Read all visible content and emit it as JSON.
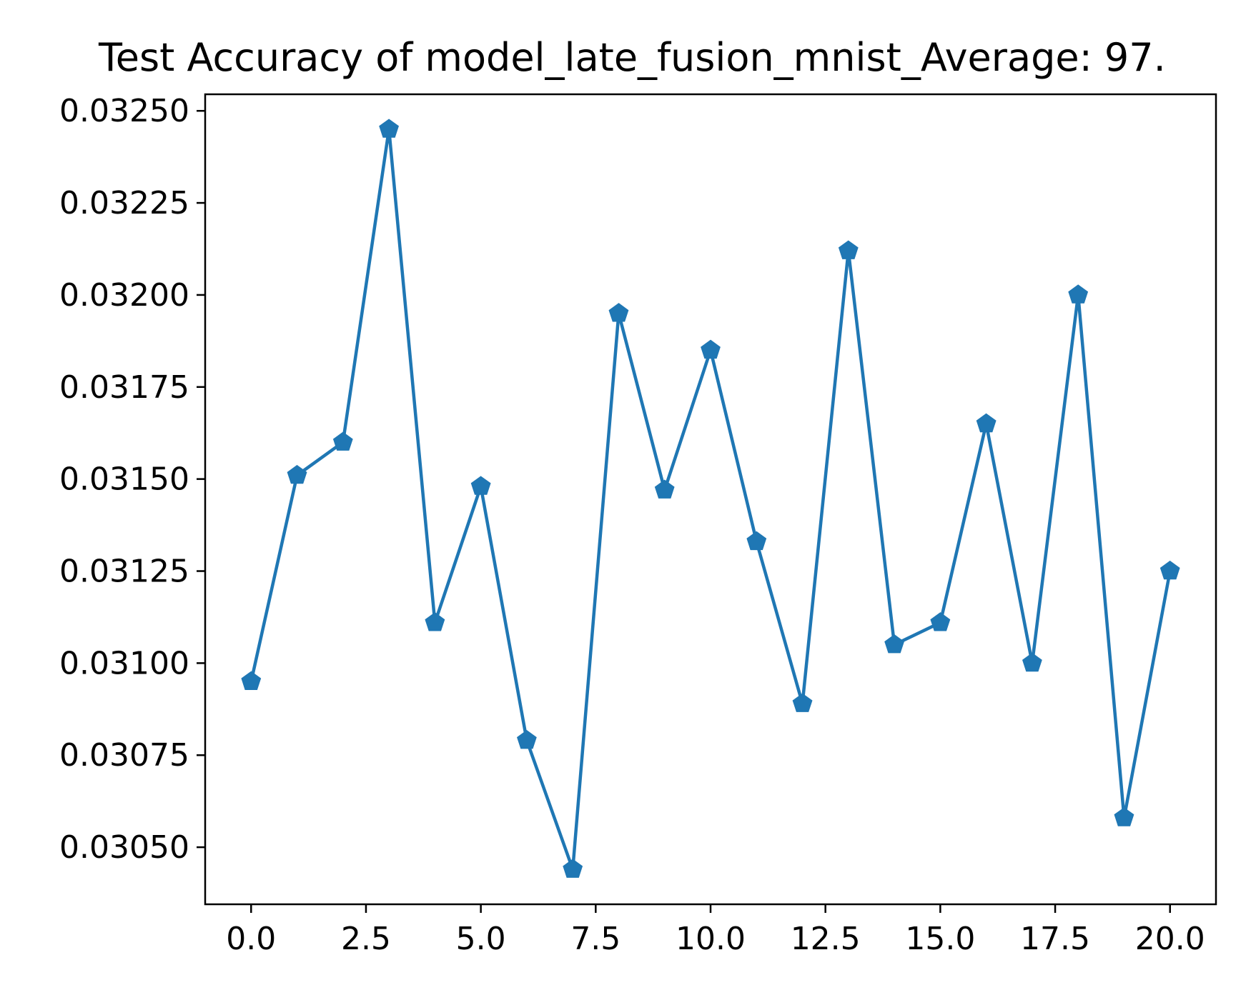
{
  "chart_data": {
    "type": "line",
    "title": "Test Accuracy of model_late_fusion_mnist_Average: 97.",
    "xlabel": "",
    "ylabel": "",
    "xlim": [
      -1.0,
      21.0
    ],
    "ylim": [
      0.030345,
      0.032545
    ],
    "x_ticks": [
      0.0,
      2.5,
      5.0,
      7.5,
      10.0,
      12.5,
      15.0,
      17.5,
      20.0
    ],
    "x_tick_labels": [
      "0.0",
      "2.5",
      "5.0",
      "7.5",
      "10.0",
      "12.5",
      "15.0",
      "17.5",
      "20.0"
    ],
    "y_ticks": [
      0.0305,
      0.03075,
      0.031,
      0.03125,
      0.0315,
      0.03175,
      0.032,
      0.03225,
      0.0325
    ],
    "y_tick_labels": [
      "0.03050",
      "0.03075",
      "0.03100",
      "0.03125",
      "0.03150",
      "0.03175",
      "0.03200",
      "0.03225",
      "0.03250"
    ],
    "grid": false,
    "legend": "none",
    "marker": "pentagon",
    "color": "#1f77b4",
    "series": [
      {
        "x": [
          0,
          1,
          2,
          3,
          4,
          5,
          6,
          7,
          8,
          9,
          10,
          11,
          12,
          13,
          14,
          15,
          16,
          17,
          18,
          19,
          20
        ],
        "values": [
          0.03095,
          0.03151,
          0.0316,
          0.03245,
          0.03111,
          0.03148,
          0.03079,
          0.03044,
          0.03195,
          0.03147,
          0.03185,
          0.03133,
          0.03089,
          0.03212,
          0.03105,
          0.03111,
          0.03165,
          0.031,
          0.032,
          0.03058,
          0.03125
        ]
      }
    ]
  }
}
